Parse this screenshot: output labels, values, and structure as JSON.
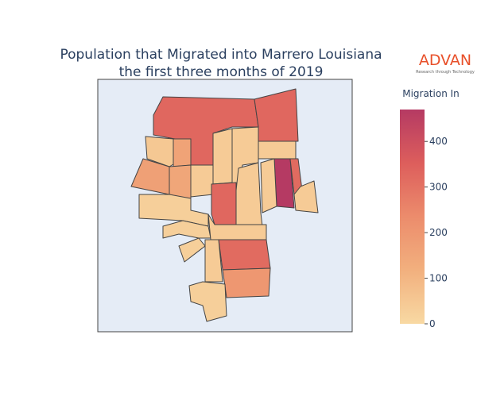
{
  "chart_data": {
    "type": "choropleth",
    "title": [
      "Population that Migrated into Marrero Louisiana",
      "the first three months of 2019"
    ],
    "values": [
      330,
      330,
      50,
      160,
      170,
      150,
      40,
      40,
      40,
      40,
      470,
      320,
      40,
      330,
      40,
      40,
      30,
      30,
      40,
      320,
      200,
      30,
      40,
      30
    ],
    "colorscale": [
      "#f8d9a3",
      "#f2b07e",
      "#ec8c6c",
      "#dd5e5c",
      "#b53a63"
    ],
    "colorbar": {
      "title": "Migration In",
      "lim": [
        0,
        470
      ],
      "ticks": [
        0,
        100,
        200,
        300,
        400
      ]
    },
    "logo": {
      "name": "ADVAN",
      "tagline": "Research through Technology"
    }
  }
}
